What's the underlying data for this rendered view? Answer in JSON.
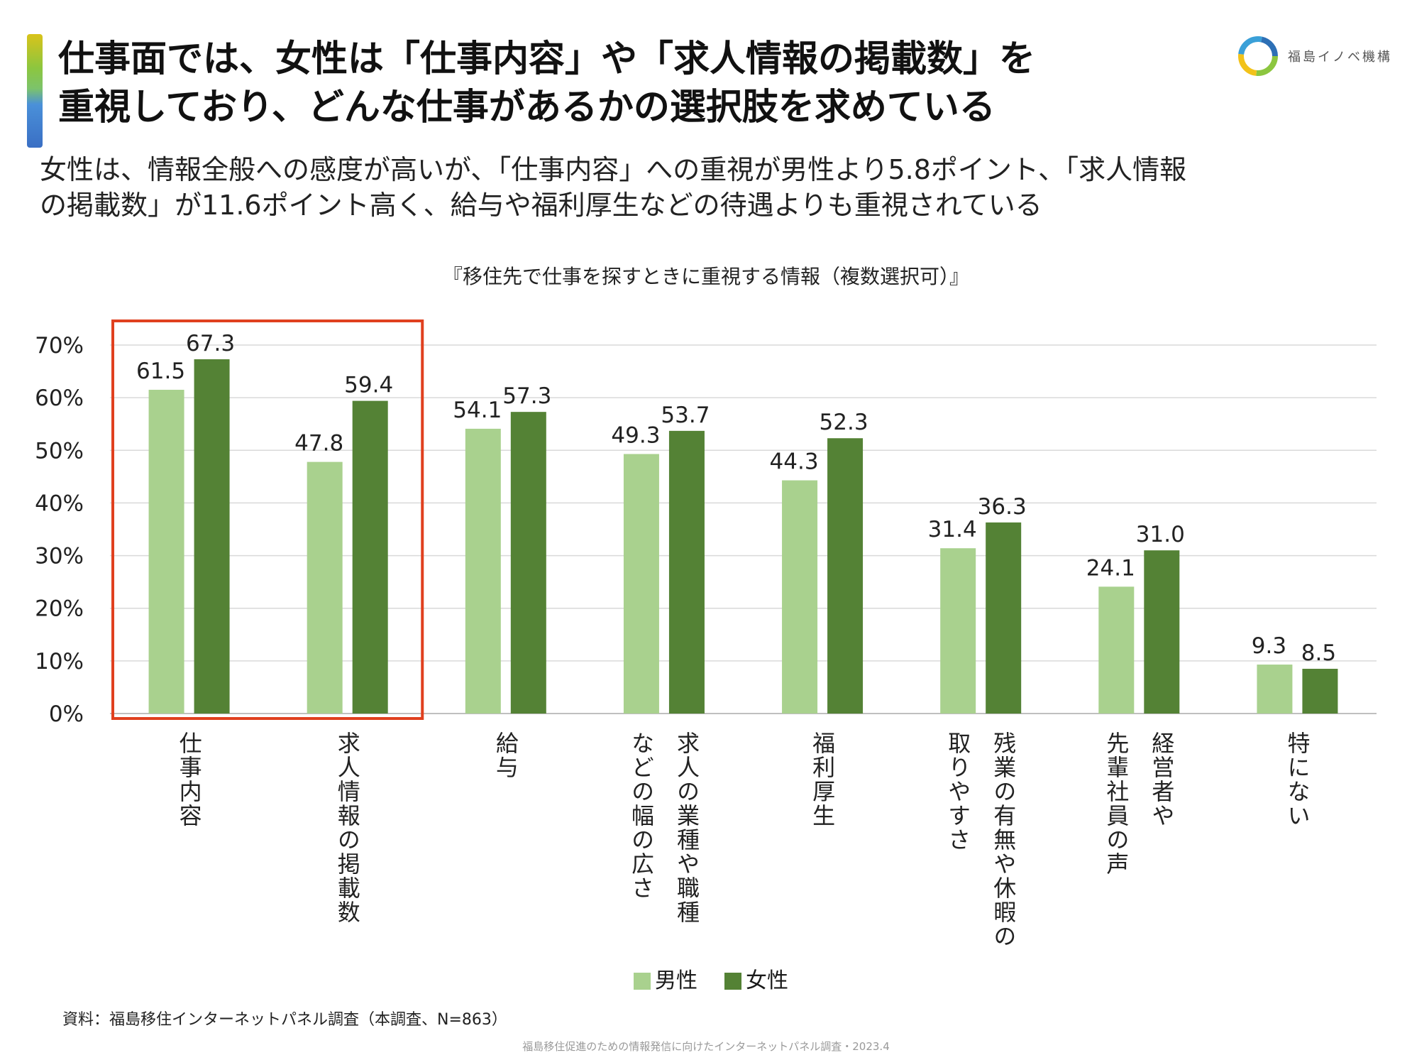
{
  "header": {
    "title_line1": "仕事面では、女性は「仕事内容」や「求人情報の掲載数」を",
    "title_line2": "重視しており、どんな仕事があるかの選択肢を求めている",
    "subtitle_line1": "女性は、情報全般への感度が高いが、「仕事内容」への重視が男性より5.8ポイント、「求人情報",
    "subtitle_line2": "の掲載数」が11.6ポイント高く、給与や福利厚生などの待遇よりも重視されている"
  },
  "logo": {
    "text": "福島イノベ機構"
  },
  "colors": {
    "male": "#a9d18e",
    "female": "#548235",
    "highlight": "#e0401f",
    "grid": "#d9d9d9"
  },
  "chart_data": {
    "type": "bar",
    "title": "『移住先で仕事を探すときに重視する情報（複数選択可）』",
    "categories": [
      [
        "仕事内容"
      ],
      [
        "求人情報の掲載数"
      ],
      [
        "給与"
      ],
      [
        "求人の業種や職種",
        "などの幅の広さ"
      ],
      [
        "福利厚生"
      ],
      [
        "残業の有無や休暇の",
        "取りやすさ"
      ],
      [
        "経営者や",
        "先輩社員の声"
      ],
      [
        "特にない"
      ]
    ],
    "series": [
      {
        "name": "男性",
        "values": [
          61.5,
          47.8,
          54.1,
          49.3,
          44.3,
          31.4,
          24.1,
          9.3
        ],
        "labels": [
          "61.5",
          "47.8",
          "54.1",
          "49.3",
          "44.3",
          "31.4",
          "24.1",
          "9.3"
        ]
      },
      {
        "name": "女性",
        "values": [
          67.3,
          59.4,
          57.3,
          53.7,
          52.3,
          36.3,
          31.0,
          8.5
        ],
        "labels": [
          "67.3",
          "59.4",
          "57.3",
          "53.7",
          "52.3",
          "36.3",
          "31.0",
          "8.5"
        ]
      }
    ],
    "yticks": [
      "0%",
      "10%",
      "20%",
      "30%",
      "40%",
      "50%",
      "60%",
      "70%"
    ],
    "ylim": [
      0,
      70
    ],
    "highlighted_categories": [
      0,
      1
    ],
    "legend_position": "bottom"
  },
  "source": "資料：福島移住インターネットパネル調査（本調査、N=863）",
  "footer": "福島移住促進のための情報発信に向けたインターネットパネル調査・2023.4"
}
